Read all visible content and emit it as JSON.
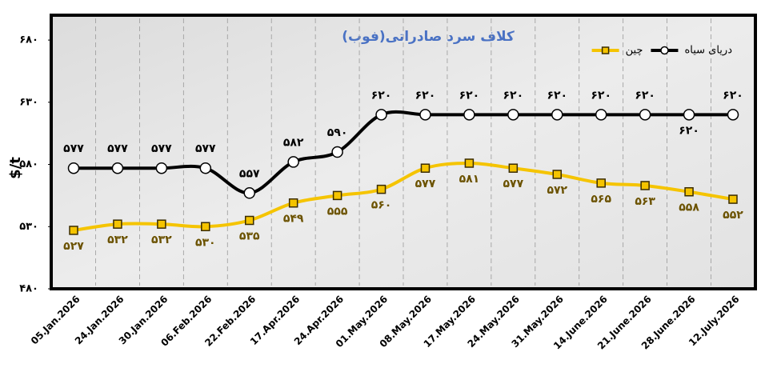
{
  "chart_data": {
    "type": "line",
    "title": "کلاف سرد صادراتی(فوب)",
    "y_label": "$/t",
    "categories": [
      "05.Jan.2026",
      "24.Jan.2026",
      "30.Jan.2026",
      "06.Feb.2026",
      "22.Feb.2026",
      "17.Apr.2026",
      "24.Apr.2026",
      "01.May.2026",
      "08.May.2026",
      "17.May.2026",
      "24.May.2026",
      "31.May.2026",
      "14.June.2026",
      "21.June.2026",
      "28.June.2026",
      "12.July.2026"
    ],
    "series": [
      {
        "name": "دریای سیاه",
        "color": "#000000",
        "marker": "circle",
        "label_side": [
          "above",
          "above",
          "above",
          "above",
          "above",
          "above",
          "above",
          "above",
          "above",
          "above",
          "above",
          "above",
          "above",
          "above",
          "below",
          "above"
        ],
        "values": [
          577,
          577,
          577,
          577,
          557,
          582,
          590,
          620,
          620,
          620,
          620,
          620,
          620,
          620,
          620,
          620
        ],
        "value_labels": [
          "۵۷۷",
          "۵۷۷",
          "۵۷۷",
          "۵۷۷",
          "۵۵۷",
          "۵۸۲",
          "۵۹۰",
          "۶۲۰",
          "۶۲۰",
          "۶۲۰",
          "۶۲۰",
          "۶۲۰",
          "۶۲۰",
          "۶۲۰",
          "۶۲۰",
          "۶۲۰"
        ]
      },
      {
        "name": "چین",
        "color": "#f5c400",
        "marker": "square",
        "label_color": "#6b5200",
        "label_side": [
          "below",
          "below",
          "below",
          "below",
          "below",
          "below",
          "below",
          "below",
          "below",
          "below",
          "below",
          "below",
          "below",
          "below",
          "below",
          "below"
        ],
        "values": [
          527,
          532,
          532,
          530,
          535,
          549,
          555,
          560,
          577,
          581,
          577,
          572,
          565,
          563,
          558,
          552
        ],
        "value_labels": [
          "۵۲۷",
          "۵۳۲",
          "۵۳۲",
          "۵۳۰",
          "۵۳۵",
          "۵۴۹",
          "۵۵۵",
          "۵۶۰",
          "۵۷۷",
          "۵۸۱",
          "۵۷۷",
          "۵۷۲",
          "۵۶۵",
          "۵۶۳",
          "۵۵۸",
          "۵۵۲"
        ]
      }
    ],
    "ylim": [
      480,
      700
    ],
    "yticks": [
      {
        "value": 480,
        "label": "۴۸۰"
      },
      {
        "value": 530,
        "label": "۵۳۰"
      },
      {
        "value": 580,
        "label": "۵۸۰"
      },
      {
        "value": 630,
        "label": "۶۳۰"
      },
      {
        "value": 680,
        "label": "۶۸۰"
      }
    ],
    "legend": "top-right"
  }
}
